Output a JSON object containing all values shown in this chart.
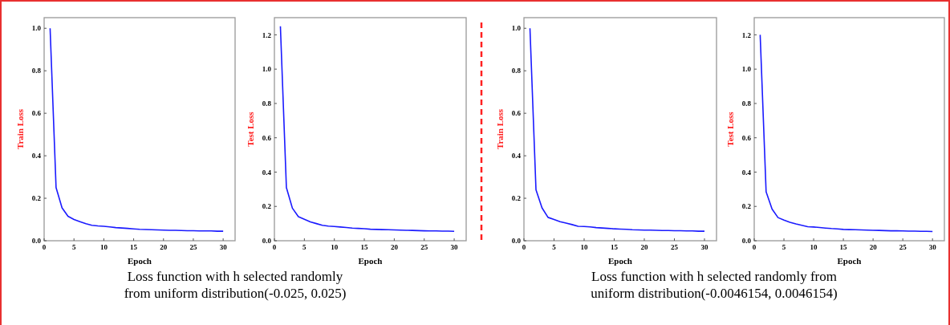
{
  "chart_data": [
    {
      "type": "line",
      "xlabel": "Epoch",
      "ylabel": "Train Loss",
      "annotations": [
        "Loss function with h selected randomly\nfrom uniform distribution(-0.025, 0.025)"
      ],
      "x": [
        1,
        2,
        3,
        4,
        5,
        6,
        7,
        8,
        9,
        10,
        11,
        12,
        13,
        14,
        15,
        16,
        17,
        18,
        19,
        20,
        21,
        22,
        23,
        24,
        25,
        26,
        27,
        28,
        29,
        30
      ],
      "xlim": [
        0,
        32
      ],
      "xticks": [
        0,
        5,
        10,
        15,
        20,
        25,
        30
      ],
      "ylim": [
        0,
        1.05
      ],
      "yticks": [
        {
          "value": 0,
          "label": "0.0"
        },
        {
          "value": 0.2,
          "label": "0.2"
        },
        {
          "value": 0.4,
          "label": "0.4"
        },
        {
          "value": 0.6,
          "label": "0.6"
        },
        {
          "value": 0.8,
          "label": "0.8"
        },
        {
          "value": 1,
          "label": "1.0"
        }
      ],
      "grid": false,
      "marker": "none",
      "line_style": "solid",
      "series": [
        {
          "color": "#1a1aff",
          "values": [
            1.0,
            0.25,
            0.155,
            0.115,
            0.1,
            0.09,
            0.08,
            0.073,
            0.07,
            0.068,
            0.065,
            0.062,
            0.06,
            0.058,
            0.056,
            0.054,
            0.053,
            0.052,
            0.051,
            0.05,
            0.049,
            0.049,
            0.048,
            0.047,
            0.047,
            0.046,
            0.046,
            0.046,
            0.045,
            0.045
          ]
        }
      ]
    },
    {
      "type": "line",
      "xlabel": "Epoch",
      "ylabel": "Test Loss",
      "x": [
        1,
        2,
        3,
        4,
        5,
        6,
        7,
        8,
        9,
        10,
        11,
        12,
        13,
        14,
        15,
        16,
        17,
        18,
        19,
        20,
        21,
        22,
        23,
        24,
        25,
        26,
        27,
        28,
        29,
        30
      ],
      "xlim": [
        0,
        32
      ],
      "xticks": [
        0,
        5,
        10,
        15,
        20,
        25,
        30
      ],
      "ylim": [
        0,
        1.3
      ],
      "yticks": [
        {
          "value": 0,
          "label": "0.0"
        },
        {
          "value": 0.2,
          "label": "0.2"
        },
        {
          "value": 0.4,
          "label": "0.4"
        },
        {
          "value": 0.6,
          "label": "0.6"
        },
        {
          "value": 0.8,
          "label": "0.8"
        },
        {
          "value": 1,
          "label": "1.0"
        },
        {
          "value": 1.2,
          "label": "1.2"
        }
      ],
      "grid": false,
      "marker": "none",
      "line_style": "solid",
      "series": [
        {
          "color": "#1a1aff",
          "values": [
            1.25,
            0.31,
            0.19,
            0.14,
            0.125,
            0.11,
            0.1,
            0.09,
            0.085,
            0.083,
            0.08,
            0.077,
            0.074,
            0.072,
            0.07,
            0.067,
            0.066,
            0.065,
            0.064,
            0.063,
            0.062,
            0.061,
            0.06,
            0.059,
            0.058,
            0.057,
            0.057,
            0.056,
            0.056,
            0.055
          ]
        }
      ]
    },
    {
      "type": "line",
      "xlabel": "Epoch",
      "ylabel": "Train Loss",
      "annotations": [
        "Loss function with h selected randomly from\nuniform distribution(-0.0046154, 0.0046154)"
      ],
      "x": [
        1,
        2,
        3,
        4,
        5,
        6,
        7,
        8,
        9,
        10,
        11,
        12,
        13,
        14,
        15,
        16,
        17,
        18,
        19,
        20,
        21,
        22,
        23,
        24,
        25,
        26,
        27,
        28,
        29,
        30
      ],
      "xlim": [
        0,
        32
      ],
      "xticks": [
        0,
        5,
        10,
        15,
        20,
        25,
        30
      ],
      "ylim": [
        0,
        1.05
      ],
      "yticks": [
        {
          "value": 0,
          "label": "0.0"
        },
        {
          "value": 0.2,
          "label": "0.2"
        },
        {
          "value": 0.4,
          "label": "0.4"
        },
        {
          "value": 0.6,
          "label": "0.6"
        },
        {
          "value": 0.8,
          "label": "0.8"
        },
        {
          "value": 1,
          "label": "1.0"
        }
      ],
      "grid": false,
      "marker": "none",
      "line_style": "solid",
      "series": [
        {
          "color": "#1a1aff",
          "values": [
            1.0,
            0.24,
            0.155,
            0.11,
            0.1,
            0.09,
            0.083,
            0.076,
            0.068,
            0.067,
            0.065,
            0.062,
            0.06,
            0.058,
            0.056,
            0.055,
            0.054,
            0.052,
            0.051,
            0.05,
            0.05,
            0.049,
            0.048,
            0.048,
            0.047,
            0.047,
            0.046,
            0.046,
            0.045,
            0.045
          ]
        }
      ]
    },
    {
      "type": "line",
      "xlabel": "Epoch",
      "ylabel": "Test Loss",
      "x": [
        1,
        2,
        3,
        4,
        5,
        6,
        7,
        8,
        9,
        10,
        11,
        12,
        13,
        14,
        15,
        16,
        17,
        18,
        19,
        20,
        21,
        22,
        23,
        24,
        25,
        26,
        27,
        28,
        29,
        30
      ],
      "xlim": [
        0,
        32
      ],
      "xticks": [
        0,
        5,
        10,
        15,
        20,
        25,
        30
      ],
      "ylim": [
        0,
        1.3
      ],
      "yticks": [
        {
          "value": 0,
          "label": "0.0"
        },
        {
          "value": 0.2,
          "label": "0.2"
        },
        {
          "value": 0.4,
          "label": "0.4"
        },
        {
          "value": 0.6,
          "label": "0.6"
        },
        {
          "value": 0.8,
          "label": "0.8"
        },
        {
          "value": 1,
          "label": "1.0"
        },
        {
          "value": 1.2,
          "label": "1.2"
        }
      ],
      "grid": false,
      "marker": "none",
      "line_style": "solid",
      "series": [
        {
          "color": "#1a1aff",
          "values": [
            1.2,
            0.285,
            0.185,
            0.135,
            0.12,
            0.108,
            0.098,
            0.09,
            0.082,
            0.08,
            0.077,
            0.074,
            0.071,
            0.069,
            0.066,
            0.065,
            0.064,
            0.063,
            0.062,
            0.061,
            0.06,
            0.059,
            0.058,
            0.058,
            0.057,
            0.056,
            0.056,
            0.055,
            0.055,
            0.054
          ]
        }
      ]
    }
  ]
}
